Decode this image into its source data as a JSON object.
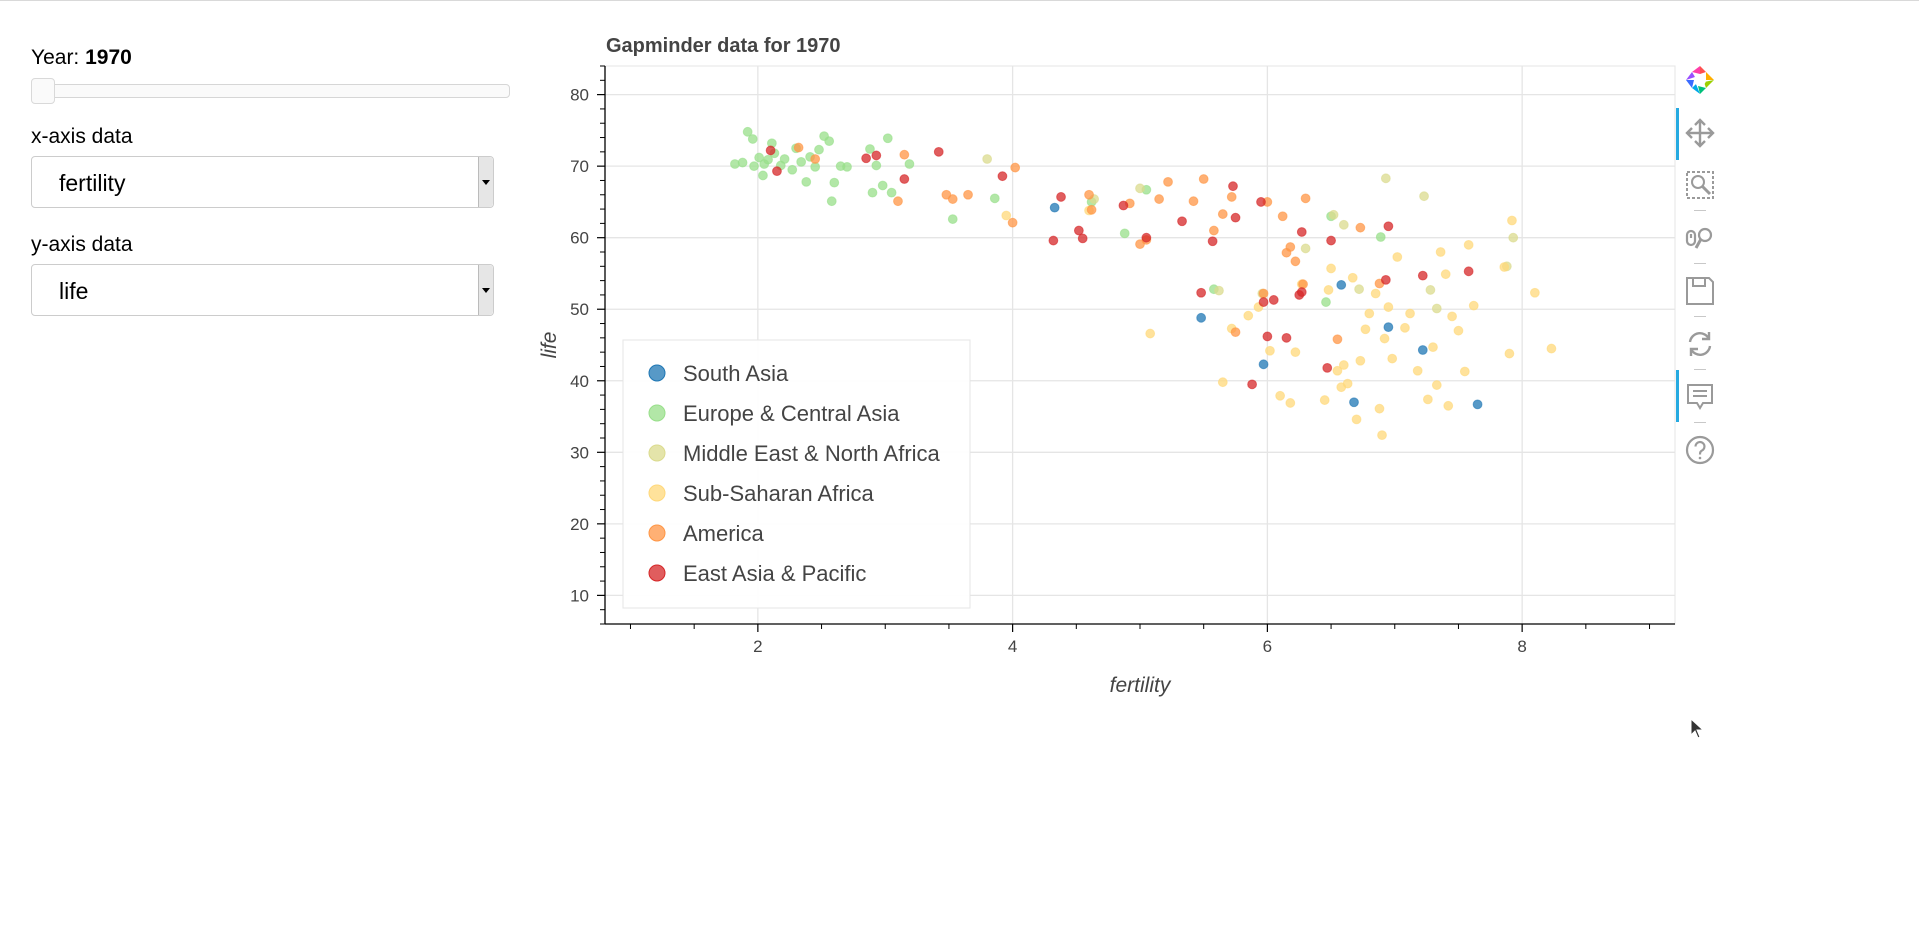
{
  "controls": {
    "year_label": "Year:",
    "year_value": "1970",
    "slider_position": 0.0,
    "x_axis_label": "x-axis data",
    "x_axis_value": "fertility",
    "y_axis_label": "y-axis data",
    "y_axis_value": "life"
  },
  "toolbar": {
    "tools": [
      "bokeh-logo-icon",
      "pan-icon",
      "box-zoom-icon",
      "wheel-zoom-icon",
      "save-icon",
      "reset-icon",
      "hover-icon",
      "help-icon"
    ],
    "active_tools": [
      "pan-icon",
      "hover-icon"
    ],
    "accent_color": "#26aae1"
  },
  "chart_data": {
    "type": "scatter",
    "title": "Gapminder data for 1970",
    "xlabel": "fertility",
    "ylabel": "life",
    "xlim": [
      0.8,
      9.2
    ],
    "ylim": [
      6,
      84
    ],
    "x_ticks": [
      2,
      4,
      6,
      8
    ],
    "y_ticks": [
      10,
      20,
      30,
      40,
      50,
      60,
      70,
      80
    ],
    "grid": true,
    "legend_position": "bottom-left",
    "series": [
      {
        "name": "South Asia",
        "color": "#1f77b4",
        "points": [
          [
            4.33,
            64.2
          ],
          [
            5.48,
            48.8
          ],
          [
            5.97,
            42.3
          ],
          [
            6.58,
            53.4
          ],
          [
            6.68,
            37.0
          ],
          [
            6.95,
            47.5
          ],
          [
            7.22,
            44.3
          ],
          [
            7.65,
            36.7
          ]
        ]
      },
      {
        "name": "Europe & Central Asia",
        "color": "#98df8a",
        "points": [
          [
            1.82,
            70.3
          ],
          [
            1.88,
            70.5
          ],
          [
            1.92,
            74.8
          ],
          [
            1.96,
            73.8
          ],
          [
            1.97,
            70.0
          ],
          [
            2.01,
            71.2
          ],
          [
            2.04,
            68.7
          ],
          [
            2.05,
            70.3
          ],
          [
            2.08,
            70.9
          ],
          [
            2.11,
            73.2
          ],
          [
            2.13,
            71.8
          ],
          [
            2.18,
            70.1
          ],
          [
            2.21,
            71.0
          ],
          [
            2.27,
            69.5
          ],
          [
            2.3,
            72.5
          ],
          [
            2.34,
            70.6
          ],
          [
            2.38,
            67.8
          ],
          [
            2.41,
            71.3
          ],
          [
            2.45,
            69.9
          ],
          [
            2.48,
            72.3
          ],
          [
            2.52,
            74.2
          ],
          [
            2.56,
            73.5
          ],
          [
            2.58,
            65.1
          ],
          [
            2.6,
            67.7
          ],
          [
            2.65,
            70.0
          ],
          [
            2.7,
            69.9
          ],
          [
            2.88,
            72.4
          ],
          [
            2.9,
            66.3
          ],
          [
            2.93,
            70.1
          ],
          [
            2.98,
            67.3
          ],
          [
            3.02,
            73.9
          ],
          [
            3.05,
            66.3
          ],
          [
            3.19,
            70.3
          ],
          [
            3.53,
            62.6
          ],
          [
            3.86,
            65.5
          ],
          [
            4.62,
            65.0
          ],
          [
            4.88,
            60.6
          ],
          [
            5.05,
            66.7
          ],
          [
            5.58,
            52.8
          ],
          [
            6.46,
            51.0
          ],
          [
            6.5,
            63.0
          ],
          [
            6.89,
            60.1
          ]
        ]
      },
      {
        "name": "Middle East & North Africa",
        "color": "#dbdb8d",
        "points": [
          [
            3.8,
            71.0
          ],
          [
            4.64,
            65.4
          ],
          [
            5.0,
            66.9
          ],
          [
            5.62,
            52.6
          ],
          [
            5.96,
            52.2
          ],
          [
            6.3,
            58.5
          ],
          [
            6.52,
            63.2
          ],
          [
            6.6,
            61.8
          ],
          [
            6.72,
            52.8
          ],
          [
            6.93,
            68.3
          ],
          [
            7.23,
            65.8
          ],
          [
            7.28,
            52.7
          ],
          [
            7.33,
            50.1
          ],
          [
            7.88,
            56.0
          ],
          [
            7.93,
            60.0
          ]
        ]
      },
      {
        "name": "Sub-Saharan Africa",
        "color": "#ffd87a",
        "points": [
          [
            3.95,
            63.1
          ],
          [
            4.6,
            63.8
          ],
          [
            5.08,
            46.6
          ],
          [
            5.65,
            39.8
          ],
          [
            5.72,
            47.3
          ],
          [
            5.85,
            49.1
          ],
          [
            5.93,
            50.3
          ],
          [
            6.02,
            44.2
          ],
          [
            6.1,
            37.9
          ],
          [
            6.18,
            36.9
          ],
          [
            6.22,
            44.0
          ],
          [
            6.27,
            53.5
          ],
          [
            6.45,
            37.3
          ],
          [
            6.48,
            52.7
          ],
          [
            6.5,
            55.7
          ],
          [
            6.55,
            41.4
          ],
          [
            6.58,
            39.1
          ],
          [
            6.6,
            42.2
          ],
          [
            6.63,
            39.6
          ],
          [
            6.67,
            54.4
          ],
          [
            6.7,
            34.6
          ],
          [
            6.73,
            42.8
          ],
          [
            6.77,
            47.2
          ],
          [
            6.8,
            49.4
          ],
          [
            6.85,
            52.2
          ],
          [
            6.88,
            36.1
          ],
          [
            6.9,
            32.4
          ],
          [
            6.92,
            45.9
          ],
          [
            6.95,
            50.3
          ],
          [
            6.98,
            43.1
          ],
          [
            7.02,
            57.3
          ],
          [
            7.08,
            47.4
          ],
          [
            7.12,
            49.4
          ],
          [
            7.18,
            41.4
          ],
          [
            7.26,
            37.4
          ],
          [
            7.3,
            44.7
          ],
          [
            7.33,
            39.4
          ],
          [
            7.36,
            58.0
          ],
          [
            7.4,
            54.9
          ],
          [
            7.42,
            36.5
          ],
          [
            7.45,
            49.0
          ],
          [
            7.5,
            47.0
          ],
          [
            7.55,
            41.3
          ],
          [
            7.58,
            59.0
          ],
          [
            7.62,
            50.5
          ],
          [
            7.86,
            55.9
          ],
          [
            7.9,
            43.8
          ],
          [
            7.92,
            62.4
          ],
          [
            8.1,
            52.3
          ],
          [
            8.23,
            44.5
          ]
        ]
      },
      {
        "name": "America",
        "color": "#ff9645",
        "points": [
          [
            2.32,
            72.6
          ],
          [
            2.45,
            71.0
          ],
          [
            3.1,
            65.1
          ],
          [
            3.15,
            71.6
          ],
          [
            3.48,
            66.0
          ],
          [
            3.53,
            65.4
          ],
          [
            3.65,
            66.0
          ],
          [
            4.0,
            62.1
          ],
          [
            4.02,
            69.8
          ],
          [
            4.6,
            66.0
          ],
          [
            4.62,
            63.9
          ],
          [
            4.92,
            64.8
          ],
          [
            5.0,
            59.1
          ],
          [
            5.05,
            59.7
          ],
          [
            5.15,
            65.4
          ],
          [
            5.22,
            67.8
          ],
          [
            5.42,
            65.1
          ],
          [
            5.5,
            68.2
          ],
          [
            5.58,
            61.0
          ],
          [
            5.65,
            63.3
          ],
          [
            5.72,
            65.7
          ],
          [
            5.75,
            46.8
          ],
          [
            5.97,
            52.2
          ],
          [
            6.0,
            65.0
          ],
          [
            6.12,
            63.0
          ],
          [
            6.15,
            57.9
          ],
          [
            6.18,
            58.7
          ],
          [
            6.22,
            56.7
          ],
          [
            6.28,
            53.5
          ],
          [
            6.3,
            65.5
          ],
          [
            6.55,
            45.8
          ],
          [
            6.73,
            61.4
          ],
          [
            6.88,
            53.6
          ]
        ]
      },
      {
        "name": "East Asia & Pacific",
        "color": "#d62728",
        "points": [
          [
            2.1,
            72.2
          ],
          [
            2.15,
            69.3
          ],
          [
            2.85,
            71.1
          ],
          [
            2.93,
            71.5
          ],
          [
            3.15,
            68.2
          ],
          [
            3.42,
            72.0
          ],
          [
            3.92,
            68.6
          ],
          [
            4.32,
            59.6
          ],
          [
            4.38,
            65.7
          ],
          [
            4.52,
            61.0
          ],
          [
            4.55,
            59.9
          ],
          [
            4.87,
            64.5
          ],
          [
            5.05,
            60.0
          ],
          [
            5.33,
            62.3
          ],
          [
            5.48,
            52.3
          ],
          [
            5.57,
            59.5
          ],
          [
            5.73,
            67.2
          ],
          [
            5.75,
            62.8
          ],
          [
            5.95,
            65.0
          ],
          [
            5.97,
            51.0
          ],
          [
            6.0,
            46.2
          ],
          [
            6.05,
            51.3
          ],
          [
            6.15,
            46.0
          ],
          [
            6.25,
            52.0
          ],
          [
            6.27,
            52.4
          ],
          [
            6.47,
            41.8
          ],
          [
            6.5,
            59.6
          ],
          [
            6.93,
            54.1
          ],
          [
            6.95,
            61.6
          ],
          [
            7.22,
            54.7
          ],
          [
            7.58,
            55.3
          ],
          [
            5.88,
            39.5
          ],
          [
            6.27,
            60.8
          ]
        ]
      }
    ]
  }
}
